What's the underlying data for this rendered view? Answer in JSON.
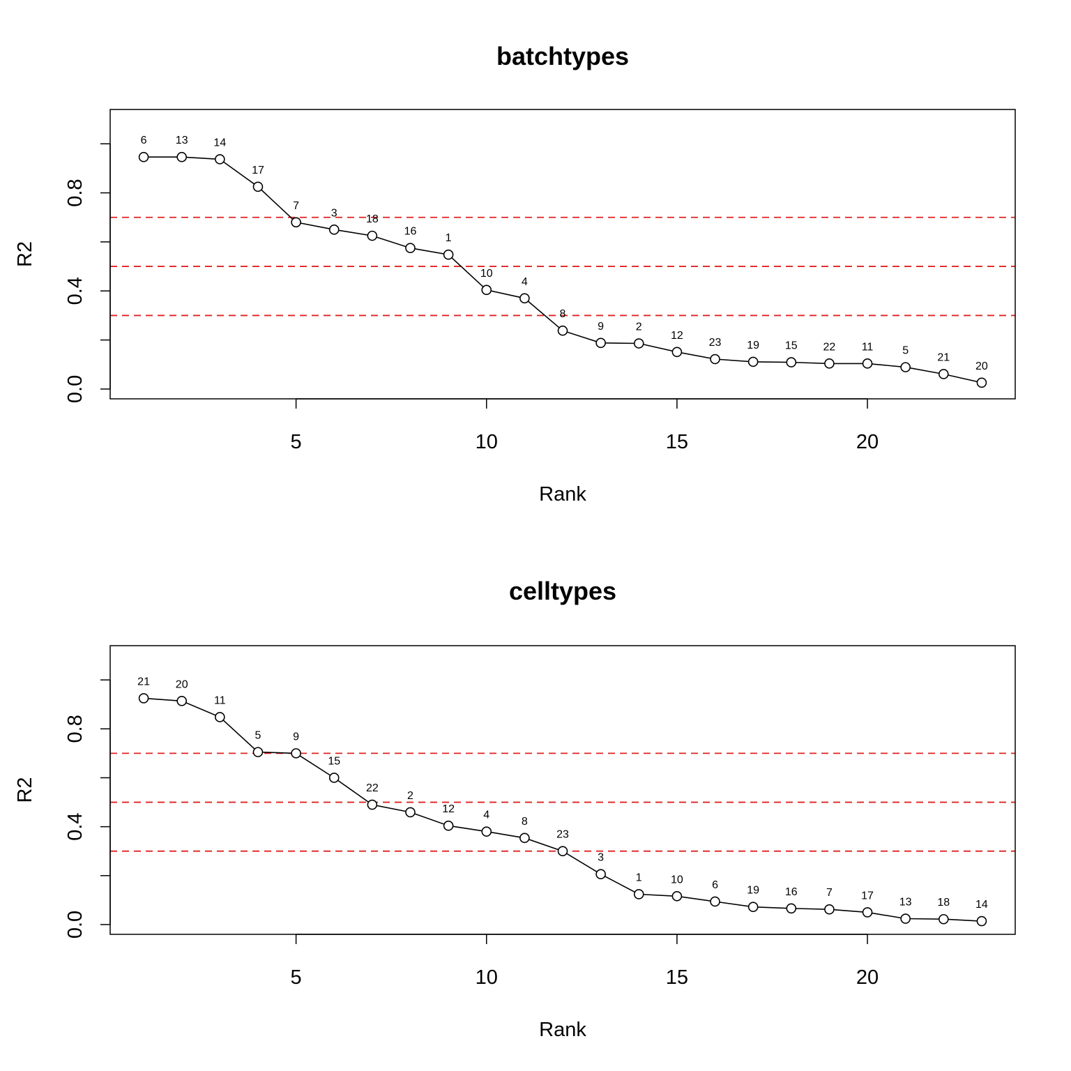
{
  "chart_data": [
    {
      "type": "line",
      "title": "batchtypes",
      "xlabel": "Rank",
      "ylabel": "R2",
      "xlim": [
        0.12,
        23.88
      ],
      "ylim": [
        -0.04,
        1.14
      ],
      "xticks": [
        5,
        10,
        15,
        20
      ],
      "yticks": [
        0.0,
        0.2,
        0.4,
        0.6,
        0.8,
        1.0
      ],
      "ytick_labels": [
        "0.0",
        "",
        "0.4",
        "",
        "0.8",
        ""
      ],
      "reference_lines": [
        0.7,
        0.5,
        0.3
      ],
      "reference_line_color": "#e02020",
      "x": [
        1,
        2,
        3,
        4,
        5,
        6,
        7,
        8,
        9,
        10,
        11,
        12,
        13,
        14,
        15,
        16,
        17,
        18,
        19,
        20,
        21,
        22,
        23
      ],
      "y": [
        0.946,
        0.946,
        0.937,
        0.825,
        0.68,
        0.65,
        0.625,
        0.575,
        0.548,
        0.404,
        0.37,
        0.238,
        0.188,
        0.186,
        0.151,
        0.122,
        0.111,
        0.109,
        0.104,
        0.104,
        0.089,
        0.061,
        0.026
      ],
      "point_labels": [
        "6",
        "13",
        "14",
        "17",
        "7",
        "3",
        "18",
        "16",
        "1",
        "10",
        "4",
        "8",
        "9",
        "2",
        "12",
        "23",
        "19",
        "15",
        "22",
        "11",
        "5",
        "21",
        "20"
      ]
    },
    {
      "type": "line",
      "title": "celltypes",
      "xlabel": "Rank",
      "ylabel": "R2",
      "xlim": [
        0.12,
        23.88
      ],
      "ylim": [
        -0.04,
        1.14
      ],
      "xticks": [
        5,
        10,
        15,
        20
      ],
      "yticks": [
        0.0,
        0.2,
        0.4,
        0.6,
        0.8,
        1.0
      ],
      "ytick_labels": [
        "0.0",
        "",
        "0.4",
        "",
        "0.8",
        ""
      ],
      "reference_lines": [
        0.7,
        0.5,
        0.3
      ],
      "reference_line_color": "#e02020",
      "x": [
        1,
        2,
        3,
        4,
        5,
        6,
        7,
        8,
        9,
        10,
        11,
        12,
        13,
        14,
        15,
        16,
        17,
        18,
        19,
        20,
        21,
        22,
        23
      ],
      "y": [
        0.925,
        0.914,
        0.848,
        0.705,
        0.7,
        0.6,
        0.49,
        0.459,
        0.404,
        0.38,
        0.354,
        0.3,
        0.206,
        0.124,
        0.116,
        0.094,
        0.072,
        0.066,
        0.062,
        0.05,
        0.024,
        0.022,
        0.014
      ],
      "point_labels": [
        "21",
        "20",
        "11",
        "5",
        "9",
        "15",
        "22",
        "2",
        "12",
        "4",
        "8",
        "23",
        "3",
        "1",
        "10",
        "6",
        "19",
        "16",
        "7",
        "17",
        "13",
        "18",
        "14"
      ]
    }
  ]
}
